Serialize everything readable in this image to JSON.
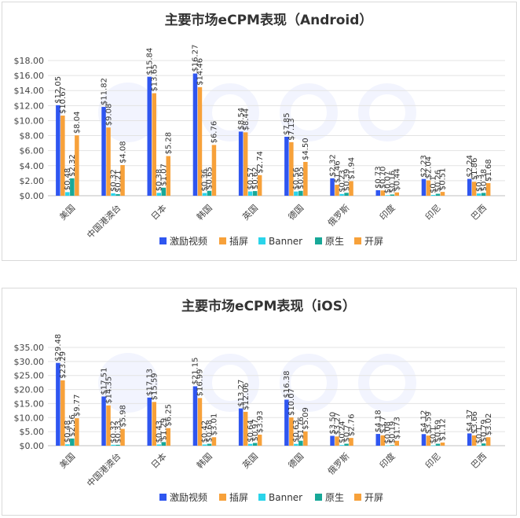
{
  "chart_data": [
    {
      "type": "bar",
      "title": "主要市场eCPM表现（Android）",
      "categories": [
        "美国",
        "中国港澳台",
        "日本",
        "韩国",
        "英国",
        "德国",
        "俄罗斯",
        "印度",
        "印尼",
        "巴西"
      ],
      "yticks": [
        "$0.00",
        "$2.00",
        "$4.00",
        "$6.00",
        "$8.00",
        "$10.00",
        "$12.00",
        "$14.00",
        "$16.00",
        "$18.00"
      ],
      "ylim": [
        0,
        18
      ],
      "legend_position": "bottom",
      "grid": true,
      "series": [
        {
          "name": "激励视频",
          "color": "#2f56f0",
          "values": [
            12.05,
            11.82,
            15.84,
            16.27,
            8.54,
            7.85,
            2.32,
            0.73,
            2.23,
            2.24
          ],
          "labels": [
            "$12.05",
            "$11.82",
            "$15.84",
            "$16.27",
            "$8.54",
            "$7.85",
            "$2.32",
            "$0.73",
            "$2.23",
            "$2.24"
          ]
        },
        {
          "name": "插屏",
          "color": "#f7a13a",
          "values": [
            10.67,
            9.08,
            13.65,
            14.46,
            8.44,
            7.13,
            1.46,
            0.7,
            2.04,
            1.86
          ],
          "labels": [
            "$10.67",
            "$9.08",
            "$13.65",
            "$14.46",
            "$8.44",
            "$7.13",
            "$1.46",
            "$0.70",
            "$2.04",
            "$1.86"
          ]
        },
        {
          "name": "Banner",
          "color": "#2ad4ea",
          "values": [
            0.48,
            0.32,
            0.38,
            0.36,
            0.57,
            0.56,
            0.23,
            0.07,
            0.1,
            0.3
          ],
          "labels": [
            "$0.48",
            "$0.32",
            "$0.38",
            "$0.36",
            "$0.57",
            "$0.56",
            "$0.23",
            "$0.07",
            "$0.1",
            "$0.3"
          ]
        },
        {
          "name": "原生",
          "color": "#17a898",
          "values": [
            2.32,
            0.21,
            1.07,
            0.65,
            0.62,
            0.65,
            0.39,
            0.16,
            0.26,
            0.38
          ],
          "labels": [
            "$2.32",
            "$0.21",
            "$1.07",
            "$0.65",
            "$0.62",
            "$0.65",
            "$0.39",
            "$0.16",
            "$0.26",
            "$0.38"
          ]
        },
        {
          "name": "开屏",
          "color": "#f7a13a",
          "values": [
            8.04,
            4.08,
            5.28,
            6.76,
            2.74,
            4.5,
            1.94,
            0.44,
            0.51,
            1.68
          ],
          "labels": [
            "$8.04",
            "$4.08",
            "$5.28",
            "$6.76",
            "$2.74",
            "$4.50",
            "$1.94",
            "$0.44",
            "$0.51",
            "$1.68"
          ]
        }
      ]
    },
    {
      "type": "bar",
      "title": "主要市场eCPM表现（iOS）",
      "categories": [
        "美国",
        "中国港澳台",
        "日本",
        "韩国",
        "英国",
        "德国",
        "俄罗斯",
        "印度",
        "印尼",
        "巴西"
      ],
      "yticks": [
        "$0.00",
        "$5.00",
        "$10.00",
        "$15.00",
        "$20.00",
        "$25.00",
        "$30.00",
        "$35.00"
      ],
      "ylim": [
        0,
        35
      ],
      "legend_position": "bottom",
      "grid": true,
      "series": [
        {
          "name": "激励视频",
          "color": "#2f56f0",
          "values": [
            29.48,
            17.51,
            17.13,
            21.15,
            13.27,
            16.38,
            3.5,
            4.18,
            4.12,
            4.37
          ],
          "labels": [
            "$29.48",
            "$17.51",
            "$17.13",
            "$21.15",
            "$13.27",
            "$16.38",
            "$3.50",
            "$4.18",
            "$4.12",
            "$4.37"
          ]
        },
        {
          "name": "插屏",
          "color": "#f7a13a",
          "values": [
            23.29,
            14.35,
            15.59,
            16.99,
            12.06,
            10.07,
            3.27,
            3.7,
            3.59,
            3.66
          ],
          "labels": [
            "$23.29",
            "$14.35",
            "$15.59",
            "$16.99",
            "$12.06",
            "$10.07",
            "$3.27",
            "$3.7",
            "$3.59",
            "$3.66"
          ]
        },
        {
          "name": "Banner",
          "color": "#2ad4ea",
          "values": [
            0.48,
            0.32,
            0.43,
            0.42,
            0.64,
            0.63,
            0.24,
            0.08,
            0.1,
            0.1
          ],
          "labels": [
            "$0.48",
            "$0.32",
            "$0.43",
            "$0.42",
            "$0.64",
            "$0.63",
            "$0.24",
            "$0.08",
            "$0.1",
            "$0.1"
          ]
        },
        {
          "name": "原生",
          "color": "#17a898",
          "values": [
            2.56,
            0.33,
            1.29,
            0.68,
            0.97,
            1.76,
            0.7,
            0.19,
            0.69,
            0.79
          ],
          "labels": [
            "$2.56",
            "$0.33",
            "$1.29",
            "$0.68",
            "$0.97",
            "$1.76",
            "$0.7",
            "$0.19",
            "$0.69",
            "$0.79"
          ]
        },
        {
          "name": "开屏",
          "color": "#f7a13a",
          "values": [
            9.77,
            5.98,
            6.25,
            3.01,
            3.93,
            5.09,
            2.76,
            1.73,
            1.12,
            3.02
          ],
          "labels": [
            "$9.77",
            "$5.98",
            "$6.25",
            "$3.01",
            "$3.93",
            "$5.09",
            "$2.76",
            "$1.73",
            "$1.12",
            "$3.02"
          ]
        }
      ]
    }
  ]
}
